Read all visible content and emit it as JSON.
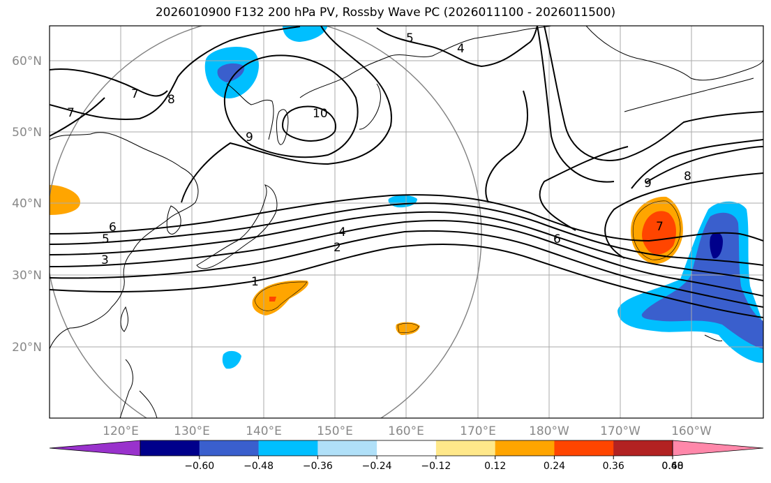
{
  "title": "2026010900 F132 200 hPa PV, Rossby Wave PC (2026011100 - 2026011500)",
  "lat_labels": [
    "60°N",
    "50°N",
    "40°N",
    "30°N",
    "20°N"
  ],
  "lon_labels": [
    "120°E",
    "130°E",
    "140°E",
    "150°E",
    "160°E",
    "170°E",
    "180°W",
    "170°W",
    "160°W"
  ],
  "contour_labels": [
    "1",
    "2",
    "3",
    "4",
    "5",
    "6",
    "6",
    "7",
    "7",
    "8",
    "8",
    "9",
    "9",
    "10",
    "4",
    "5",
    "7"
  ],
  "colorbar": {
    "tick_labels": [
      "−0.60",
      "−0.48",
      "−0.36",
      "−0.24",
      "−0.12",
      "0.12",
      "0.24",
      "0.36",
      "0.48",
      "0.60"
    ],
    "colors": [
      "#9932cc",
      "#00008b",
      "#3a5fcd",
      "#00bfff",
      "#b0e0f8",
      "#ffffff",
      "#ffe88a",
      "#ffa500",
      "#ff4500",
      "#b22222",
      "#ff88aa"
    ]
  },
  "colors": {
    "negative_mid": "#3a5fcd",
    "negative_light": "#00bfff",
    "positive_mid": "#ffa500",
    "positive_strong": "#ff4500",
    "gridline": "#aaaaaa",
    "contour": "#000000"
  }
}
